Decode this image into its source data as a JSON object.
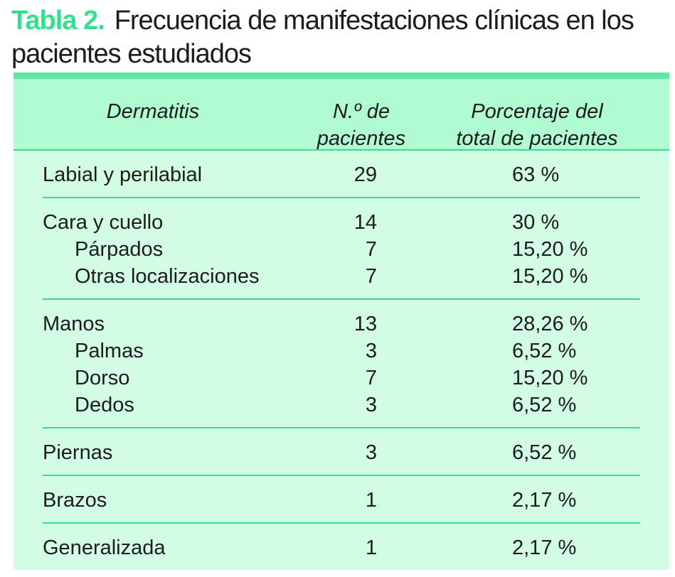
{
  "caption": {
    "label": "Tabla 2.",
    "text": "Frecuencia de manifestaciones clínicas en los pacientes estudiados"
  },
  "table": {
    "columns": [
      {
        "id": "dermatitis",
        "lines": [
          "Dermatitis",
          ""
        ]
      },
      {
        "id": "n-de-pacientes",
        "lines": [
          "N.º de",
          "pacientes"
        ]
      },
      {
        "id": "porcentaje-total",
        "lines": [
          "Porcentaje del",
          "total de pacientes"
        ]
      }
    ],
    "groups": [
      {
        "rows": [
          {
            "label": "Labial y perilabial",
            "indent": false,
            "n": "29",
            "pct": "63 %"
          }
        ]
      },
      {
        "rows": [
          {
            "label": "Cara y cuello",
            "indent": false,
            "n": "14",
            "pct": "30 %"
          },
          {
            "label": "Párpados",
            "indent": true,
            "n": "7",
            "pct": "15,20 %"
          },
          {
            "label": "Otras localizaciones",
            "indent": true,
            "n": "7",
            "pct": "15,20 %"
          }
        ]
      },
      {
        "rows": [
          {
            "label": "Manos",
            "indent": false,
            "n": "13",
            "pct": "28,26 %"
          },
          {
            "label": "Palmas",
            "indent": true,
            "n": "3",
            "pct": "6,52 %"
          },
          {
            "label": "Dorso",
            "indent": true,
            "n": "7",
            "pct": "15,20 %"
          },
          {
            "label": "Dedos",
            "indent": true,
            "n": "3",
            "pct": "6,52 %"
          }
        ]
      },
      {
        "rows": [
          {
            "label": "Piernas",
            "indent": false,
            "n": "3",
            "pct": "6,52 %"
          }
        ]
      },
      {
        "rows": [
          {
            "label": "Brazos",
            "indent": false,
            "n": "1",
            "pct": "2,17 %"
          }
        ]
      },
      {
        "rows": [
          {
            "label": "Generalizada",
            "indent": false,
            "n": "1",
            "pct": "2,17 %"
          }
        ]
      }
    ]
  },
  "colors": {
    "caption_accent": "#35e08c",
    "top_bar": "#5ee7a2",
    "header_bg": "#b0fbd2",
    "body_bg": "#d3fce5",
    "divider": "#2ee28c",
    "text": "#1c1c1c"
  }
}
